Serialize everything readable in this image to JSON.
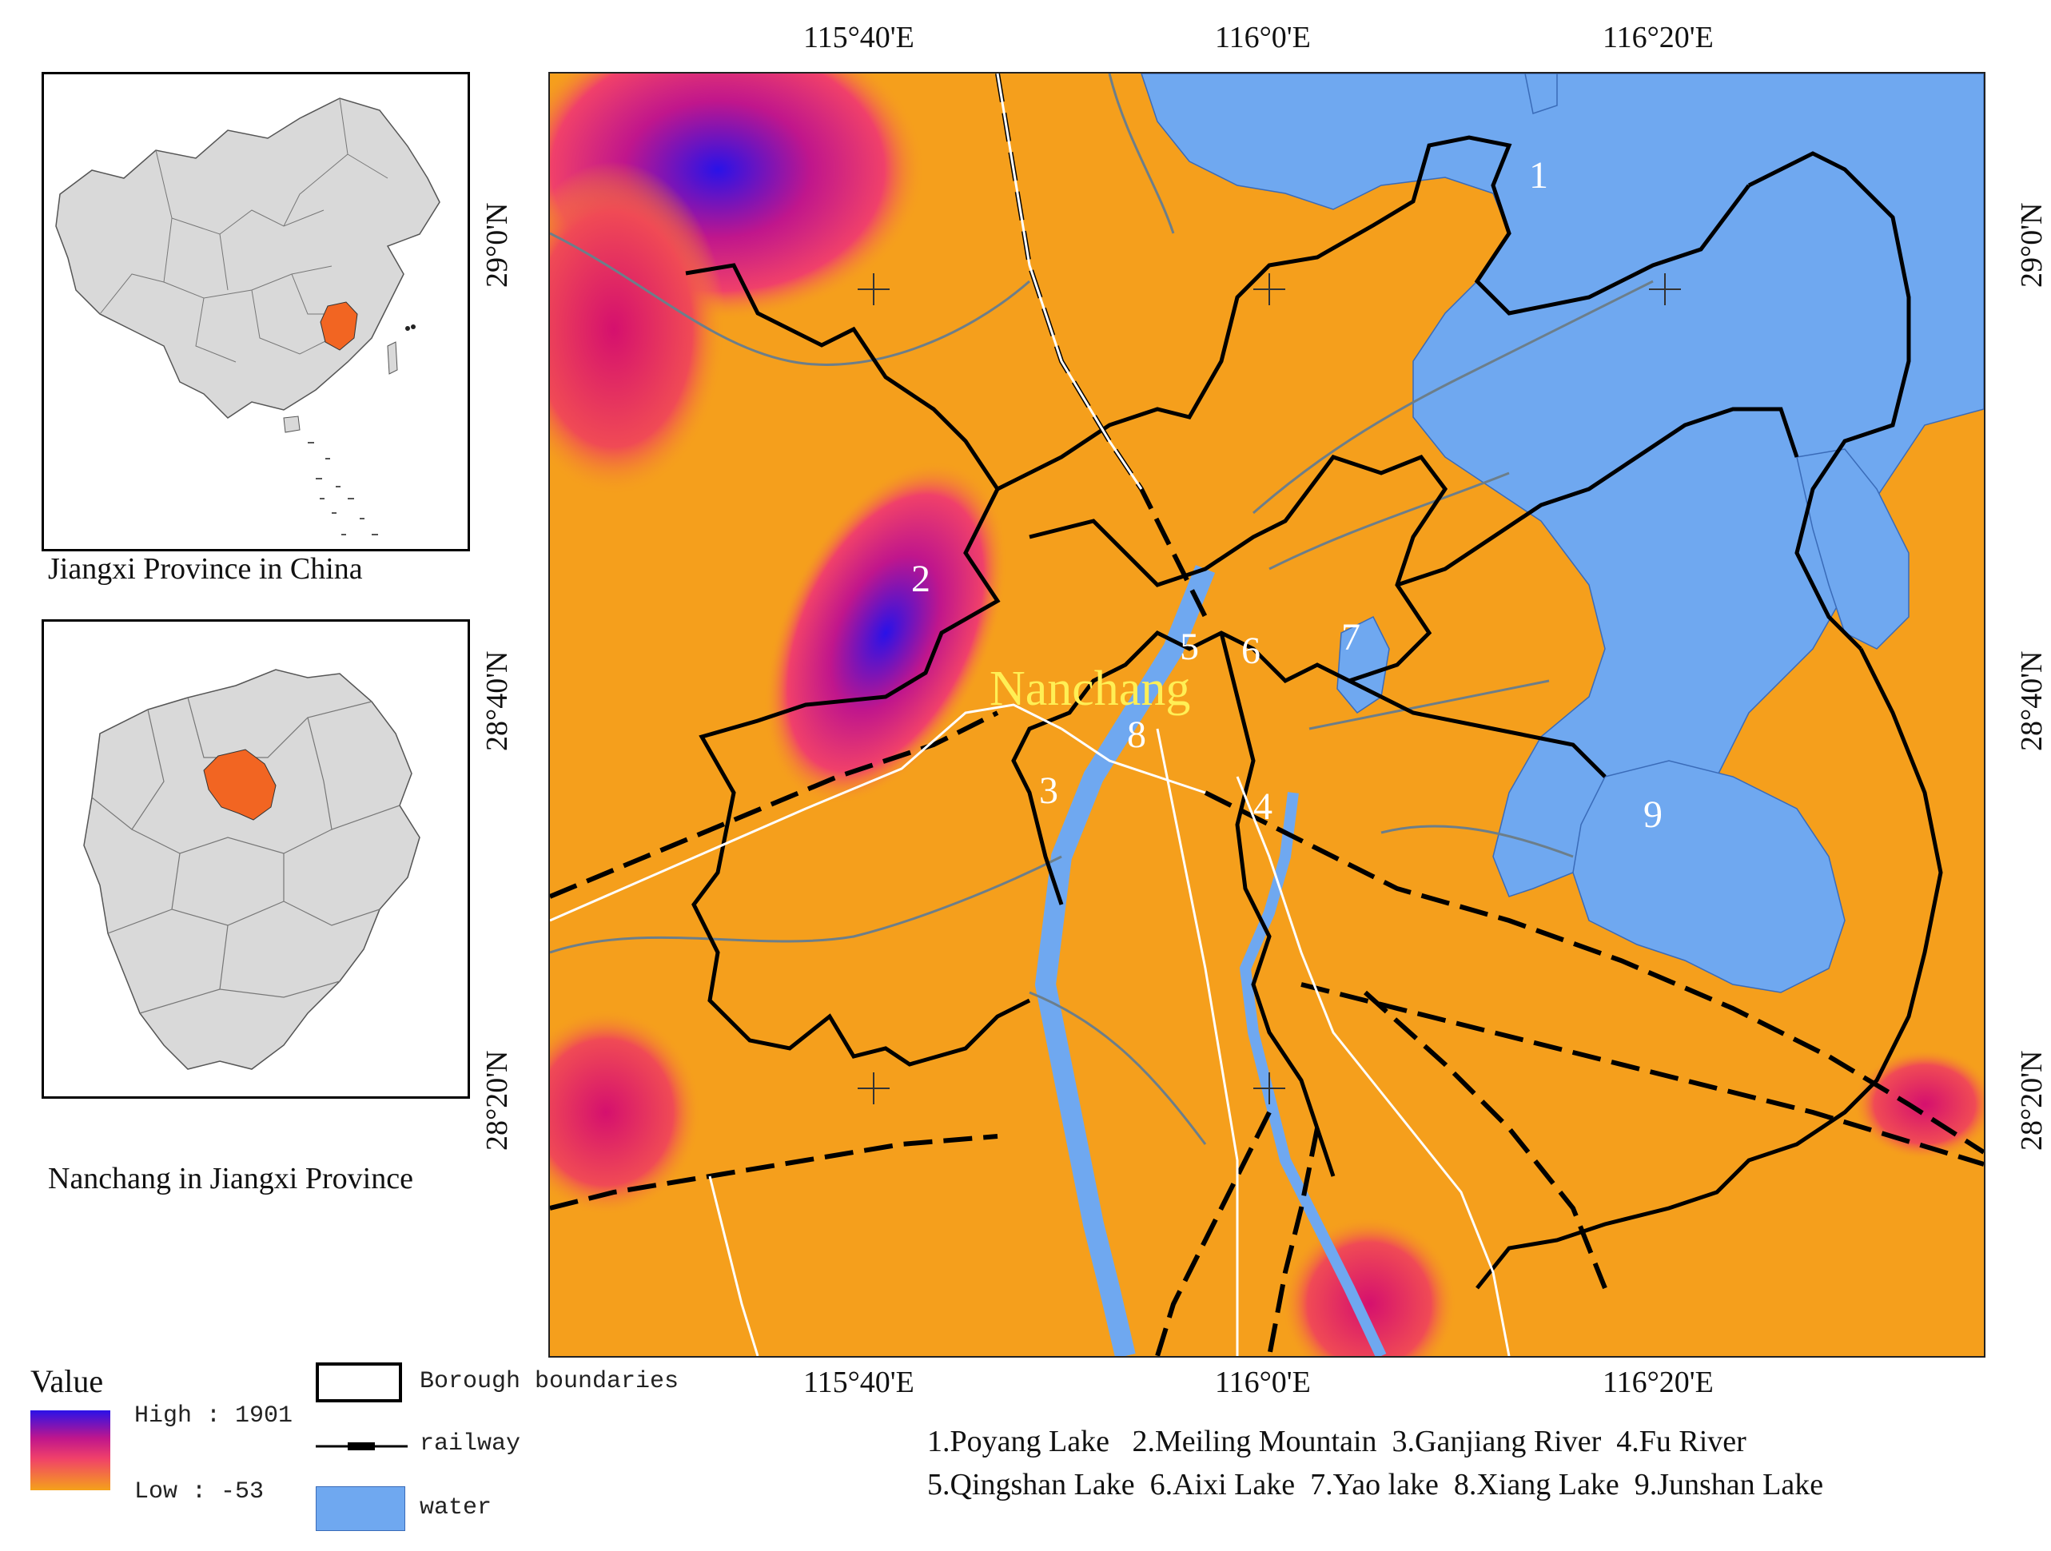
{
  "main_map": {
    "lon_labels": [
      "115°40'E",
      "116°0'E",
      "116°20'E"
    ],
    "lat_labels": [
      "29°0'N",
      "28°40'N",
      "28°20'N"
    ],
    "city_label": "Nanchang",
    "feature_numbers": [
      "1",
      "2",
      "3",
      "4",
      "5",
      "6",
      "7",
      "8",
      "9"
    ]
  },
  "insets": {
    "china_caption": "Jiangxi Province in China",
    "jiangxi_caption": "Nanchang in Jiangxi Province",
    "highlight_color": "#f26522",
    "land_color": "#d9d9d9"
  },
  "legend": {
    "value_title": "Value",
    "high_label": "High : 1901",
    "low_label": "Low : -53",
    "boundary_label": "Borough boundaries",
    "railway_label": "railway",
    "water_label": "water",
    "water_color": "#6fa8f0"
  },
  "feature_names": {
    "line1": "1.Poyang Lake   2.Meiling Mountain  3.Ganjiang River  4.Fu River",
    "line2": "5.Qingshan Lake  6.Aixi Lake  7.Yao lake  8.Xiang Lake  9.Junshan Lake"
  }
}
